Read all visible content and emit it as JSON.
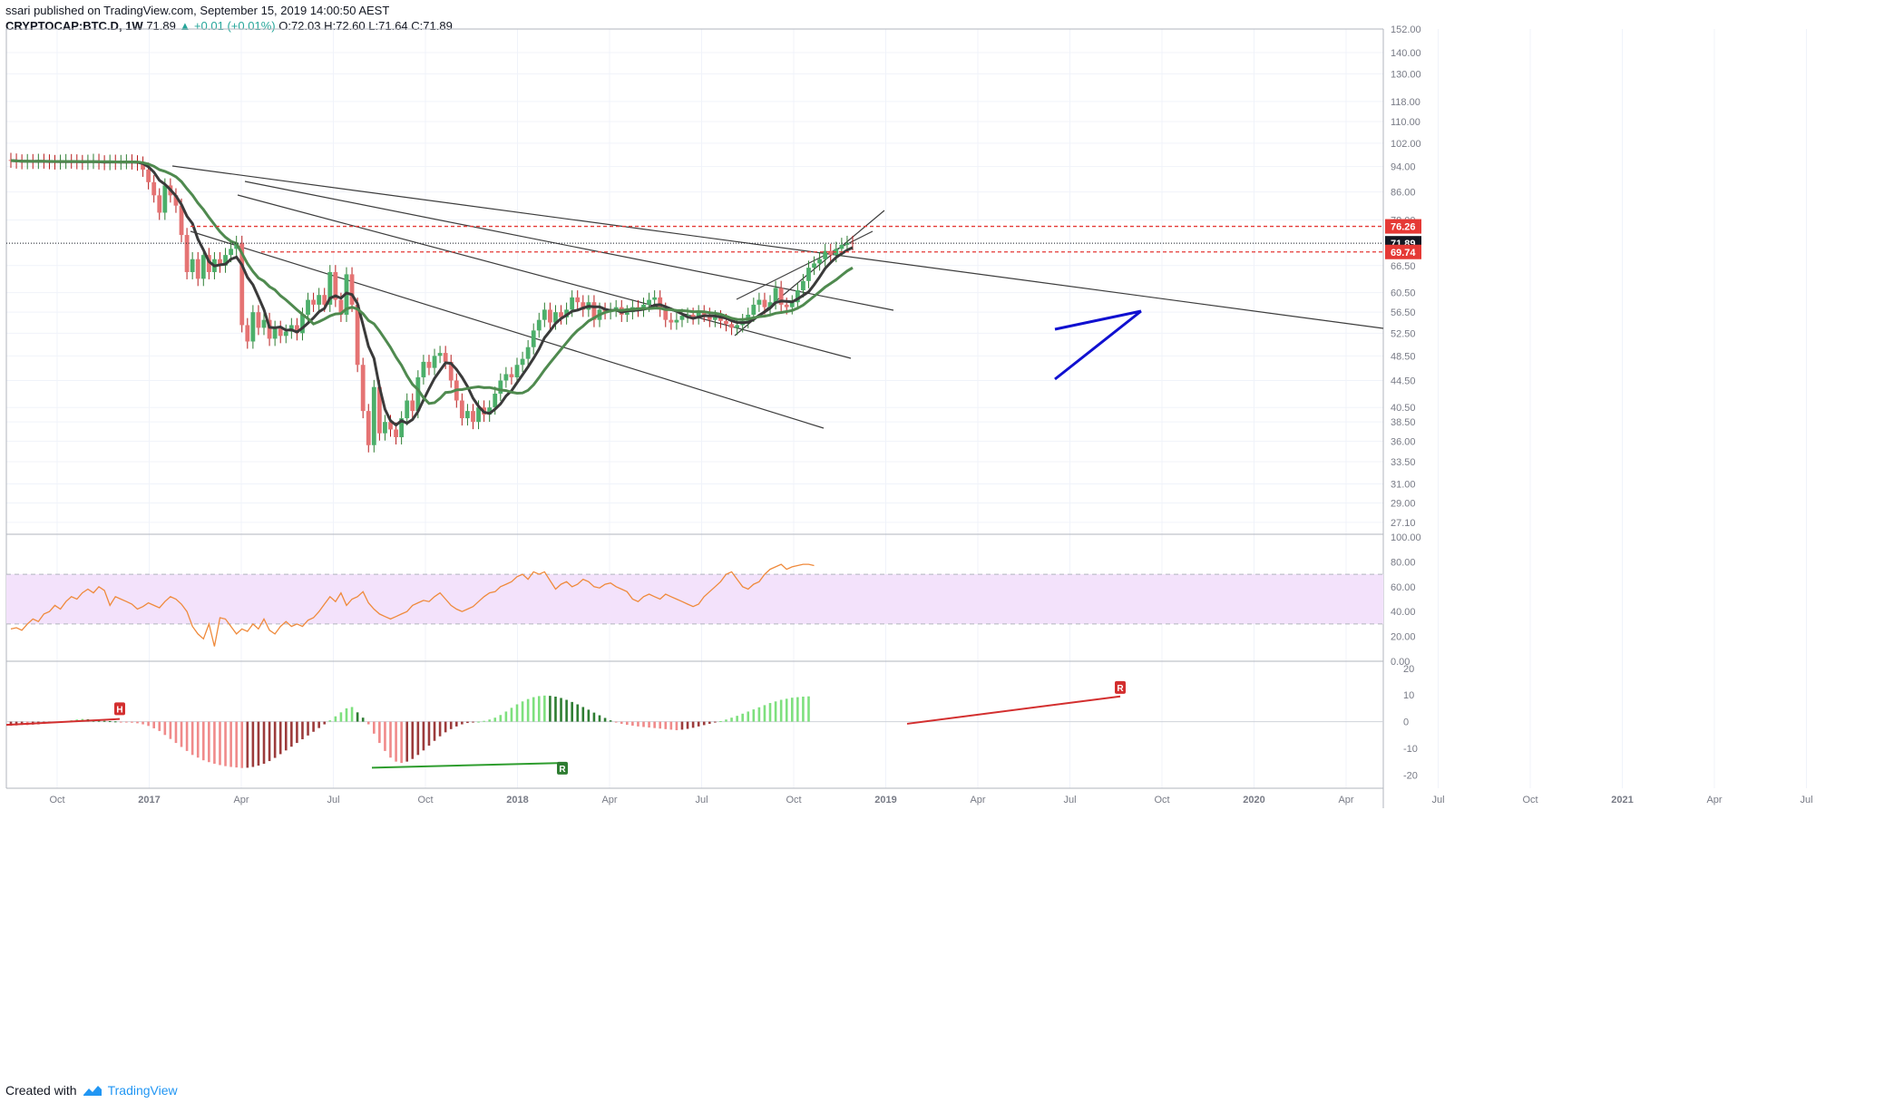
{
  "header": {
    "author": "ssari",
    "published": "published on TradingView.com, September 15, 2019 14:00:50 AEST",
    "symbol": "CRYPTOCAP:BTC.D",
    "interval": "1W",
    "last": "71.89",
    "change": "▲ +0.01 (+0.01%)",
    "o": "O:72.03",
    "h": "H:72.60",
    "l": "L:71.64",
    "c": "C:71.89"
  },
  "footer": {
    "created_with": "Created with",
    "brand": "TradingView"
  },
  "colors": {
    "up": "#26a69a",
    "up_candle": "#4caf6a",
    "down_candle": "#e57373",
    "ma_fast": "#3a3a3a",
    "ma_slow": "#4f8a4f",
    "rsi_line": "#ef8a3c",
    "rsi_band": "#f3e2fb",
    "red_level": "#e53935",
    "trend_blue": "#1010d0",
    "hist_pos_light": "#7ee07e",
    "hist_pos_dark": "#2e7d32",
    "hist_neg_light": "#f08a8a",
    "hist_neg_dark": "#9c3b3b"
  },
  "chart_data": [
    {
      "type": "candlestick",
      "title": "CRYPTOCAP:BTC.D, 1W",
      "y_scale": "log",
      "ylim": [
        26.0,
        152.0
      ],
      "y_ticks": [
        "152.00",
        "140.00",
        "130.00",
        "118.00",
        "110.00",
        "102.00",
        "94.00",
        "86.00",
        "78.00",
        "66.50",
        "60.50",
        "56.50",
        "52.50",
        "48.50",
        "44.50",
        "40.50",
        "38.50",
        "36.00",
        "33.50",
        "31.00",
        "29.00",
        "27.10"
      ],
      "x_ticks": [
        "Oct",
        "2017",
        "Apr",
        "Jul",
        "Oct",
        "2018",
        "Apr",
        "Jul",
        "Oct",
        "2019",
        "Apr",
        "Jul",
        "Oct",
        "2020",
        "Apr",
        "Jul",
        "Oct",
        "2021",
        "Apr",
        "Jul"
      ],
      "price_labels": [
        {
          "value": "76.26",
          "color": "#e53935"
        },
        {
          "value": "71.89",
          "color": "#131722"
        },
        {
          "value": "69.74",
          "color": "#e53935"
        }
      ],
      "series": [
        {
          "name": "price",
          "close": [
            96.0,
            95.7,
            95.5,
            95.8,
            95.6,
            95.9,
            95.7,
            95.5,
            95.4,
            95.6,
            95.8,
            95.7,
            95.5,
            95.3,
            95.6,
            95.9,
            95.4,
            95.2,
            95.6,
            95.3,
            95.5,
            95.7,
            95.4,
            95.0,
            93.0,
            89.0,
            85.0,
            80.0,
            88.0,
            85.0,
            82.0,
            74.0,
            65.0,
            68.0,
            63.5,
            69.0,
            65.0,
            68.0,
            66.5,
            69.0,
            70.5,
            72.0,
            54.0,
            51.0,
            56.5,
            53.5,
            55.0,
            51.5,
            53.5,
            52.0,
            52.8,
            54.0,
            52.5,
            56.0,
            59.0,
            58.0,
            60.0,
            58.0,
            65.0,
            59.0,
            56.0,
            64.5,
            58.0,
            47.0,
            40.0,
            35.5,
            43.5,
            37.0,
            38.5,
            37.5,
            36.5,
            39.0,
            41.5,
            40.0,
            45.0,
            47.5,
            46.5,
            48.5,
            49.0,
            47.5,
            44.5,
            41.5,
            39.0,
            40.0,
            38.5,
            40.5,
            39.5,
            40.5,
            42.5,
            44.5,
            45.5,
            45.0,
            47.0,
            48.0,
            50.0,
            53.0,
            55.0,
            57.0,
            54.5,
            56.5,
            55.5,
            57.0,
            59.5,
            58.5,
            57.0,
            58.5,
            55.0,
            57.0,
            56.5,
            57.0,
            57.5,
            56.0,
            56.5,
            57.5,
            57.0,
            58.0,
            59.0,
            59.5,
            57.0,
            55.0,
            54.5,
            55.0,
            55.8,
            56.0,
            55.5,
            56.5,
            56.0,
            55.0,
            55.5,
            54.8,
            54.2,
            53.5,
            54.0,
            54.8,
            56.0,
            58.0,
            59.0,
            57.5,
            58.5,
            61.5,
            58.0,
            57.5,
            58.5,
            61.0,
            63.0,
            66.0,
            67.0,
            68.0,
            70.0,
            69.0,
            70.5,
            71.5,
            72.0,
            71.89
          ]
        },
        {
          "name": "ma_fast"
        },
        {
          "name": "ma_slow"
        }
      ]
    },
    {
      "type": "line",
      "title": "RSI",
      "ylim": [
        0,
        100
      ],
      "y_ticks": [
        "100.00",
        "80.00",
        "60.00",
        "40.00",
        "20.00",
        "0.00"
      ],
      "band": [
        30,
        70
      ],
      "series": [
        {
          "name": "rsi",
          "values": [
            26,
            27,
            25,
            30,
            34,
            32,
            38,
            40,
            45,
            42,
            48,
            52,
            50,
            55,
            58,
            55,
            60,
            57,
            45,
            52,
            50,
            48,
            46,
            42,
            44,
            47,
            45,
            43,
            48,
            52,
            50,
            46,
            40,
            28,
            22,
            18,
            30,
            12,
            35,
            34,
            28,
            22,
            26,
            24,
            30,
            26,
            34,
            25,
            22,
            28,
            32,
            28,
            30,
            28,
            33,
            35,
            40,
            46,
            52,
            48,
            55,
            45,
            50,
            52,
            56,
            47,
            42,
            38,
            36,
            34,
            36,
            38,
            40,
            45,
            47,
            49,
            48,
            52,
            55,
            50,
            45,
            42,
            40,
            42,
            44,
            48,
            52,
            55,
            56,
            60,
            62,
            64,
            68,
            70,
            66,
            72,
            70,
            72,
            65,
            58,
            62,
            64,
            60,
            62,
            66,
            64,
            60,
            59,
            62,
            63,
            60,
            58,
            56,
            50,
            48,
            52,
            54,
            52,
            50,
            54,
            52,
            50,
            48,
            46,
            44,
            46,
            52,
            56,
            60,
            64,
            70,
            72,
            66,
            60,
            58,
            62,
            64,
            70,
            74,
            76,
            78,
            74,
            76,
            77,
            78,
            78,
            77
          ]
        }
      ]
    },
    {
      "type": "bar",
      "title": "Oscillator",
      "ylim": [
        -25,
        22
      ],
      "y_ticks": [
        "20",
        "10",
        "0",
        "-10",
        "-20"
      ],
      "annotations": [
        "H",
        "R",
        "R"
      ],
      "series": [
        {
          "name": "histogram",
          "values": [
            -1.5,
            -1.4,
            -1.2,
            -1.3,
            -1.1,
            -1.0,
            -0.8,
            -0.6,
            -0.5,
            -0.3,
            0.2,
            0.5,
            0.8,
            1.0,
            0.9,
            0.7,
            0.5,
            0.3,
            0.2,
            0.1,
            -0.1,
            -0.2,
            -0.4,
            -0.6,
            -1.0,
            -1.6,
            -2.5,
            -3.5,
            -5.0,
            -6.5,
            -8.0,
            -9.5,
            -11.0,
            -12.5,
            -13.5,
            -14.5,
            -15.2,
            -15.8,
            -16.3,
            -16.7,
            -17.0,
            -17.2,
            -17.4,
            -17.3,
            -17.0,
            -16.5,
            -15.8,
            -14.8,
            -13.6,
            -12.2,
            -10.8,
            -9.4,
            -8.0,
            -6.6,
            -5.2,
            -3.8,
            -2.4,
            -1.0,
            0.5,
            2.0,
            3.5,
            5.0,
            5.5,
            3.5,
            1.5,
            -1.0,
            -4.5,
            -8.0,
            -11.0,
            -13.5,
            -15.0,
            -15.5,
            -15.0,
            -14.0,
            -12.5,
            -10.8,
            -9.0,
            -7.2,
            -5.5,
            -4.0,
            -2.8,
            -1.8,
            -1.0,
            -0.5,
            -0.2,
            0.0,
            0.3,
            0.8,
            1.5,
            2.5,
            3.8,
            5.2,
            6.5,
            7.6,
            8.5,
            9.2,
            9.6,
            9.8,
            9.7,
            9.4,
            8.9,
            8.2,
            7.4,
            6.5,
            5.5,
            4.5,
            3.4,
            2.4,
            1.4,
            0.5,
            -0.3,
            -0.8,
            -1.2,
            -1.5,
            -1.8,
            -2.0,
            -2.2,
            -2.4,
            -2.6,
            -2.8,
            -3.0,
            -3.2,
            -3.0,
            -2.7,
            -2.3,
            -1.8,
            -1.3,
            -0.8,
            -0.3,
            0.2,
            0.8,
            1.5,
            2.2,
            3.0,
            3.8,
            4.6,
            5.4,
            6.2,
            7.0,
            7.6,
            8.2,
            8.6,
            9.0,
            9.2,
            9.4,
            9.5
          ]
        }
      ]
    }
  ]
}
